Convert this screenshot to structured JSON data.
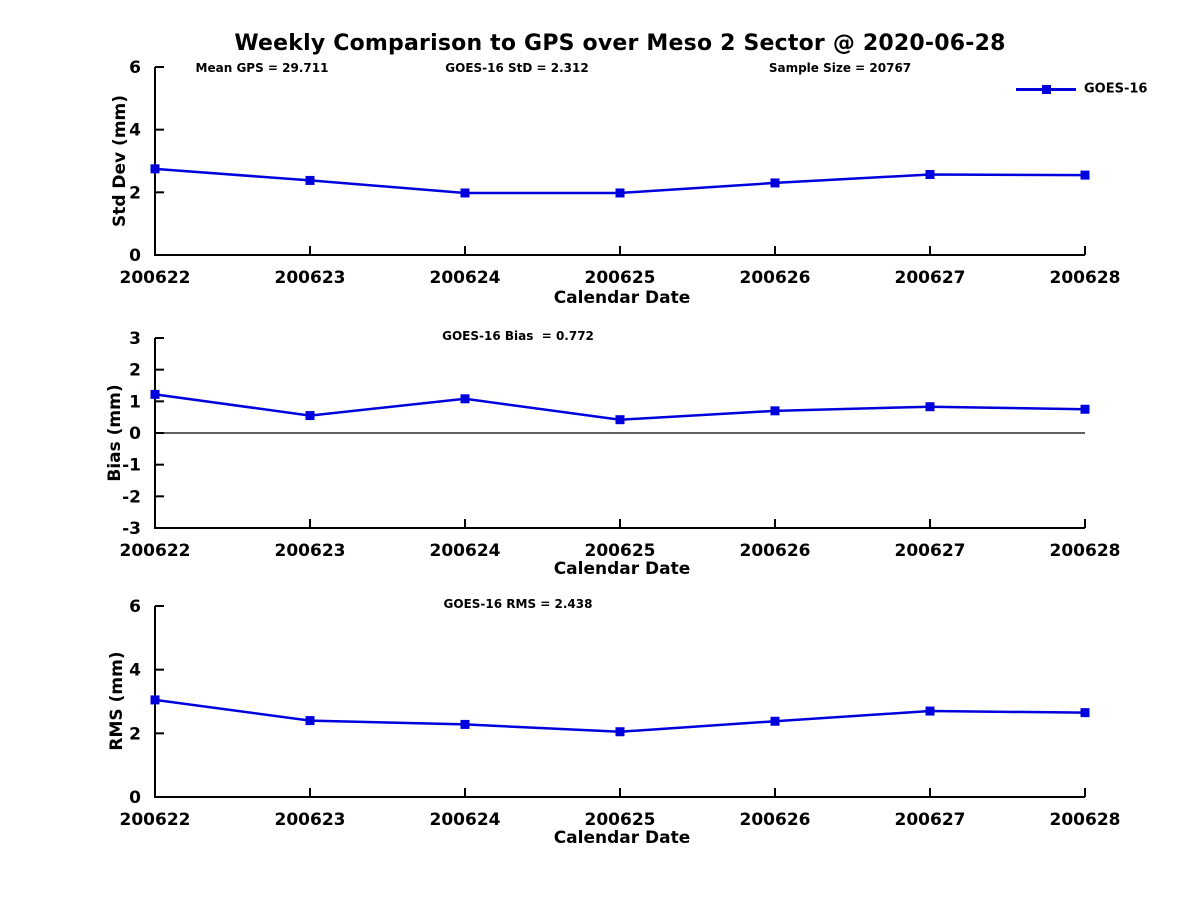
{
  "page": {
    "title": "Weekly Comparison to GPS over Meso 2 Sector @ 2020-06-28",
    "background": "#ffffff"
  },
  "colors": {
    "series": "#0000dd",
    "axis": "#000000",
    "text": "#000000",
    "zero_line": "#000000"
  },
  "legend": {
    "label": "GOES-16",
    "position": "top-right",
    "marker": "filled-square"
  },
  "chart_data": [
    {
      "type": "line",
      "id": "std-dev",
      "ylabel": "Std Dev (mm)",
      "xlabel": "Calendar Date",
      "ylim": [
        0,
        6
      ],
      "yticks": [
        0,
        2,
        4,
        6
      ],
      "grid": false,
      "zero_line": false,
      "categories": [
        "200622",
        "200623",
        "200624",
        "200625",
        "200626",
        "200627",
        "200628"
      ],
      "series": [
        {
          "name": "GOES-16",
          "marker": "square",
          "color": "#0000dd",
          "values": [
            2.75,
            2.38,
            1.98,
            1.98,
            2.3,
            2.57,
            2.55
          ]
        }
      ],
      "annotations": [
        "Mean GPS = 29.711",
        "GOES-16 StD = 2.312",
        "Sample Size = 20767"
      ]
    },
    {
      "type": "line",
      "id": "bias",
      "ylabel": "Bias (mm)",
      "xlabel": "Calendar Date",
      "ylim": [
        -3,
        3
      ],
      "yticks": [
        -3,
        -2,
        -1,
        0,
        1,
        2,
        3
      ],
      "grid": false,
      "zero_line": true,
      "categories": [
        "200622",
        "200623",
        "200624",
        "200625",
        "200626",
        "200627",
        "200628"
      ],
      "series": [
        {
          "name": "GOES-16",
          "marker": "square",
          "color": "#0000dd",
          "values": [
            1.22,
            0.55,
            1.08,
            0.42,
            0.7,
            0.83,
            0.75
          ]
        }
      ],
      "annotations": [
        "GOES-16 Bias  = 0.772"
      ]
    },
    {
      "type": "line",
      "id": "rms",
      "ylabel": "RMS (mm)",
      "xlabel": "Calendar Date",
      "ylim": [
        0,
        6
      ],
      "yticks": [
        0,
        2,
        4,
        6
      ],
      "grid": false,
      "zero_line": false,
      "categories": [
        "200622",
        "200623",
        "200624",
        "200625",
        "200626",
        "200627",
        "200628"
      ],
      "series": [
        {
          "name": "GOES-16",
          "marker": "square",
          "color": "#0000dd",
          "values": [
            3.05,
            2.4,
            2.28,
            2.05,
            2.38,
            2.7,
            2.65
          ]
        }
      ],
      "annotations": [
        "GOES-16 RMS = 2.438"
      ]
    }
  ]
}
